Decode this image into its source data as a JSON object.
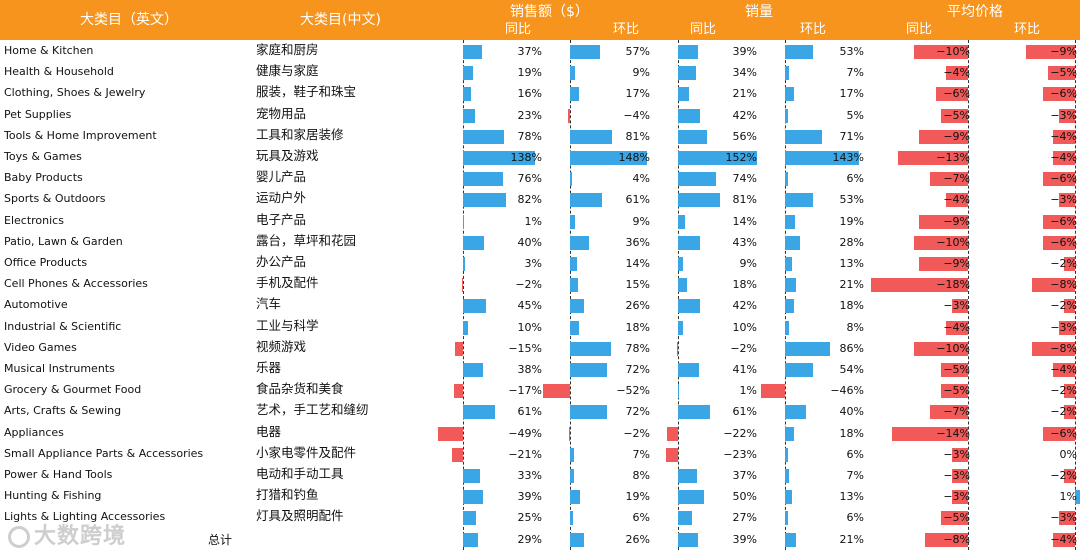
{
  "header": {
    "cat_en": "大类目（英文）",
    "cat_zh": "大类目(中文)",
    "sales": "销售额（$）",
    "volume": "销量",
    "avg_price": "平均价格",
    "yoy": "同比",
    "mom": "环比"
  },
  "colors": {
    "header_bg": "#f7941d",
    "positive": "#3ba6e6",
    "negative": "#f25a5a"
  },
  "watermark": "大数跨境",
  "chart_data": {
    "type": "table",
    "title": "",
    "columns": [
      "sales_yoy",
      "sales_mom",
      "volume_yoy",
      "volume_mom",
      "price_yoy",
      "price_mom"
    ],
    "rows": [
      {
        "en": "Home & Kitchen",
        "zh": "家庭和厨房",
        "values": [
          37,
          57,
          39,
          53,
          -10,
          -9
        ]
      },
      {
        "en": "Health & Household",
        "zh": "健康与家庭",
        "values": [
          19,
          9,
          34,
          7,
          -4,
          -5
        ]
      },
      {
        "en": "Clothing, Shoes & Jewelry",
        "zh": "服装，鞋子和珠宝",
        "values": [
          16,
          17,
          21,
          17,
          -6,
          -6
        ]
      },
      {
        "en": "Pet Supplies",
        "zh": "宠物用品",
        "values": [
          23,
          -4,
          42,
          5,
          -5,
          -3
        ]
      },
      {
        "en": "Tools & Home Improvement",
        "zh": "工具和家居装修",
        "values": [
          78,
          81,
          56,
          71,
          -9,
          -4
        ]
      },
      {
        "en": "Toys & Games",
        "zh": "玩具及游戏",
        "values": [
          138,
          148,
          152,
          143,
          -13,
          -4
        ]
      },
      {
        "en": "Baby Products",
        "zh": "婴儿产品",
        "values": [
          76,
          4,
          74,
          6,
          -7,
          -6
        ]
      },
      {
        "en": "Sports & Outdoors",
        "zh": "运动户外",
        "values": [
          82,
          61,
          81,
          53,
          -4,
          -3
        ]
      },
      {
        "en": "Electronics",
        "zh": "电子产品",
        "values": [
          1,
          9,
          14,
          19,
          -9,
          -6
        ]
      },
      {
        "en": "Patio, Lawn & Garden",
        "zh": "露台，草坪和花园",
        "values": [
          40,
          36,
          43,
          28,
          -10,
          -6
        ]
      },
      {
        "en": "Office Products",
        "zh": "办公产品",
        "values": [
          3,
          14,
          9,
          13,
          -9,
          -2
        ]
      },
      {
        "en": "Cell Phones & Accessories",
        "zh": "手机及配件",
        "values": [
          -2,
          15,
          18,
          21,
          -18,
          -8
        ]
      },
      {
        "en": "Automotive",
        "zh": "汽车",
        "values": [
          45,
          26,
          42,
          18,
          -3,
          -2
        ]
      },
      {
        "en": "Industrial & Scientific",
        "zh": "工业与科学",
        "values": [
          10,
          18,
          10,
          8,
          -4,
          -3
        ]
      },
      {
        "en": "Video Games",
        "zh": "视频游戏",
        "values": [
          -15,
          78,
          -2,
          86,
          -10,
          -8
        ]
      },
      {
        "en": "Musical Instruments",
        "zh": "乐器",
        "values": [
          38,
          72,
          41,
          54,
          -5,
          -4
        ]
      },
      {
        "en": "Grocery & Gourmet Food",
        "zh": "食品杂货和美食",
        "values": [
          -17,
          -52,
          1,
          -46,
          -5,
          -2
        ]
      },
      {
        "en": "Arts, Crafts & Sewing",
        "zh": "艺术，手工艺和缝纫",
        "values": [
          61,
          72,
          61,
          40,
          -7,
          -2
        ]
      },
      {
        "en": "Appliances",
        "zh": "电器",
        "values": [
          -49,
          -2,
          -22,
          18,
          -14,
          -6
        ]
      },
      {
        "en": "Small Appliance Parts & Accessories",
        "zh": "小家电零件及配件",
        "values": [
          -21,
          7,
          -23,
          6,
          -3,
          0
        ]
      },
      {
        "en": "Power & Hand Tools",
        "zh": "电动和手动工具",
        "values": [
          33,
          8,
          37,
          7,
          -3,
          -2
        ]
      },
      {
        "en": "Hunting & Fishing",
        "zh": "打猎和钓鱼",
        "values": [
          39,
          19,
          50,
          13,
          -3,
          1
        ]
      },
      {
        "en": "Lights & Lighting Accessories",
        "zh": "灯具及照明配件",
        "values": [
          25,
          6,
          27,
          6,
          -5,
          -3
        ]
      }
    ],
    "total": {
      "label": "总计",
      "values": [
        29,
        26,
        39,
        21,
        -8,
        -4
      ]
    }
  }
}
